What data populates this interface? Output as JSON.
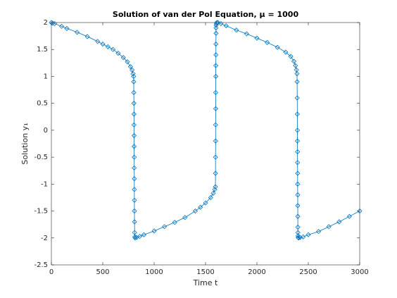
{
  "chart_data": {
    "type": "line",
    "title": "Solution of van der Pol Equation, μ = 1000",
    "xlabel": "Time t",
    "ylabel": "Solution y₁",
    "color": "#0072bd",
    "marker": "diamond",
    "xlim": [
      0,
      3000
    ],
    "xticks": [
      0,
      500,
      1000,
      1500,
      2000,
      2500,
      3000
    ],
    "ylim": [
      -2.5,
      2
    ],
    "yticks": [
      -2.5,
      -2,
      -1.5,
      -1,
      -0.5,
      0,
      0.5,
      1,
      1.5,
      2
    ],
    "x": [
      0,
      10,
      30,
      100,
      150,
      250,
      350,
      450,
      500,
      550,
      600,
      650,
      700,
      740,
      770,
      785,
      795,
      800,
      801,
      802,
      803,
      804,
      804,
      805,
      805,
      806,
      806,
      807,
      807,
      808,
      808,
      809,
      810,
      812,
      815,
      830,
      860,
      900,
      1000,
      1100,
      1200,
      1300,
      1400,
      1450,
      1500,
      1550,
      1575,
      1590,
      1596,
      1597,
      1597,
      1598,
      1598,
      1599,
      1599,
      1600,
      1600,
      1601,
      1601,
      1602,
      1602,
      1603,
      1605,
      1610,
      1620,
      1650,
      1700,
      1800,
      1900,
      2000,
      2100,
      2200,
      2280,
      2330,
      2360,
      2375,
      2385,
      2390,
      2391,
      2392,
      2393,
      2394,
      2394,
      2395,
      2395,
      2396,
      2396,
      2397,
      2397,
      2398,
      2398,
      2399,
      2400,
      2402,
      2405,
      2420,
      2450,
      2500,
      2600,
      2700,
      2800,
      2900,
      3000
    ],
    "values": [
      2,
      1.99,
      1.98,
      1.93,
      1.89,
      1.82,
      1.74,
      1.65,
      1.6,
      1.55,
      1.5,
      1.43,
      1.35,
      1.27,
      1.18,
      1.12,
      1.05,
      1,
      0.9,
      0.7,
      0.5,
      0.3,
      0.1,
      -0.1,
      -0.3,
      -0.5,
      -0.7,
      -0.9,
      -1.1,
      -1.3,
      -1.5,
      -1.7,
      -1.9,
      -1.98,
      -2,
      -1.99,
      -1.97,
      -1.94,
      -1.87,
      -1.79,
      -1.71,
      -1.62,
      -1.5,
      -1.43,
      -1.35,
      -1.25,
      -1.17,
      -1.1,
      -1.05,
      -0.8,
      -0.5,
      -0.2,
      0.1,
      0.4,
      0.7,
      1,
      1.2,
      1.4,
      1.6,
      1.8,
      1.9,
      1.95,
      1.98,
      2,
      2,
      1.98,
      1.94,
      1.86,
      1.79,
      1.71,
      1.63,
      1.54,
      1.45,
      1.37,
      1.28,
      1.2,
      1.12,
      1.05,
      0.9,
      0.6,
      0.3,
      0,
      -0.2,
      -0.4,
      -0.6,
      -0.8,
      -1,
      -1.2,
      -1.4,
      -1.6,
      -1.8,
      -1.9,
      -1.96,
      -1.99,
      -2,
      -1.99,
      -1.98,
      -1.94,
      -1.88,
      -1.79,
      -1.7,
      -1.6,
      -1.5
    ]
  }
}
